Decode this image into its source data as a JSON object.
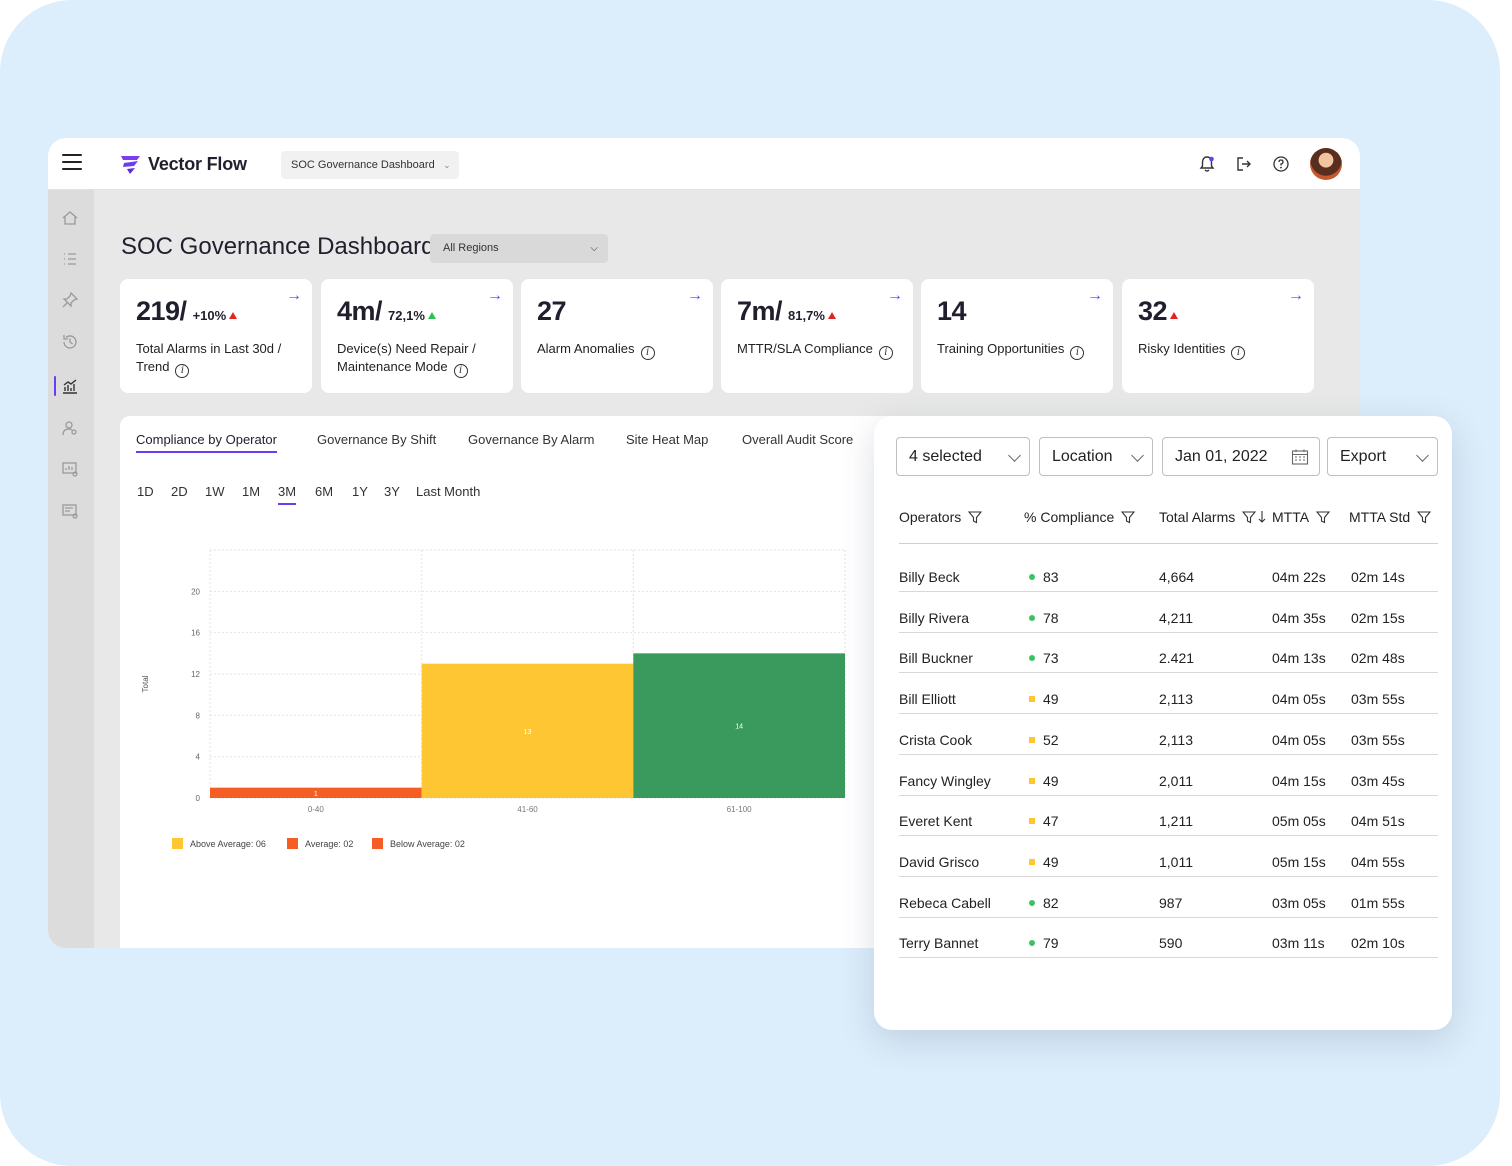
{
  "app": {
    "brand": "Vector Flow",
    "dashboard_select": "SOC Governance Dashboard",
    "accent_color": "#6b3cf0"
  },
  "header_icons": [
    "bell-icon",
    "logout-icon",
    "help-icon"
  ],
  "sidebar_icons": [
    "home-icon",
    "list-icon",
    "pin-icon",
    "history-icon",
    "analytics-icon",
    "user-search-icon",
    "report-icon",
    "billing-icon"
  ],
  "page": {
    "title": "SOC Governance Dashboard",
    "region": "All Regions"
  },
  "kpis": [
    {
      "value": "219/",
      "trend": "+10%",
      "trend_dir": "up-red",
      "label": "Total Alarms in Last 30d / Trend"
    },
    {
      "value": "4m/",
      "trend": "72,1%",
      "trend_dir": "up-green",
      "label": "Device(s) Need Repair / Maintenance Mode"
    },
    {
      "value": "27",
      "trend": "",
      "trend_dir": "",
      "label": "Alarm Anomalies"
    },
    {
      "value": "7m/",
      "trend": "81,7%",
      "trend_dir": "up-red",
      "label": "MTTR/SLA Compliance"
    },
    {
      "value": "14",
      "trend": "",
      "trend_dir": "",
      "label": "Training Opportunities"
    },
    {
      "value": "32",
      "trend": "",
      "trend_dir": "up-red",
      "label": "Risky Identities"
    }
  ],
  "tabs": [
    "Compliance by Operator",
    "Governance By Shift",
    "Governance By Alarm",
    "Site Heat Map",
    "Overall Audit Score"
  ],
  "active_tab": "Compliance by Operator",
  "ranges": [
    "1D",
    "2D",
    "1W",
    "1M",
    "3M",
    "6M",
    "1Y",
    "3Y",
    "Last Month"
  ],
  "active_range": "3M",
  "chart_data": {
    "type": "bar",
    "categories": [
      "0-40",
      "41-60",
      "61-100"
    ],
    "values": [
      1,
      13,
      14
    ],
    "colors": [
      "#f45e25",
      "#fec632",
      "#3a9a5d"
    ],
    "ylabel": "Total",
    "yticks": [
      0,
      4,
      8,
      12,
      16,
      20
    ],
    "ylim": [
      0,
      24
    ],
    "grid": true,
    "legend": [
      {
        "label": "Above Average: 06",
        "color": "#fec632"
      },
      {
        "label": "Average: 02",
        "color": "#f45e25"
      },
      {
        "label": "Below Average: 02",
        "color": "#f45e25"
      }
    ]
  },
  "filters": {
    "operators": "4 selected",
    "location": "Location",
    "date": "Jan 01, 2022",
    "export": "Export"
  },
  "table": {
    "columns": [
      "Operators",
      "% Compliance",
      "Total Alarms",
      "MTTA",
      "MTTA Std"
    ],
    "rows": [
      {
        "name": "Billy Beck",
        "compliance": "83",
        "status": "green",
        "alarms": "4,664",
        "mtta": "04m 22s",
        "std": "02m 14s"
      },
      {
        "name": "Billy Rivera",
        "compliance": "78",
        "status": "green",
        "alarms": "4,211",
        "mtta": "04m 35s",
        "std": "02m 15s"
      },
      {
        "name": "Bill Buckner",
        "compliance": "73",
        "status": "green",
        "alarms": "2.421",
        "mtta": "04m 13s",
        "std": "02m 48s"
      },
      {
        "name": "Bill Elliott",
        "compliance": "49",
        "status": "yellow",
        "alarms": "2,113",
        "mtta": "04m 05s",
        "std": "03m 55s"
      },
      {
        "name": "Crista Cook",
        "compliance": "52",
        "status": "yellow",
        "alarms": "2,113",
        "mtta": "04m 05s",
        "std": "03m 55s"
      },
      {
        "name": "Fancy Wingley",
        "compliance": "49",
        "status": "yellow",
        "alarms": "2,011",
        "mtta": "04m 15s",
        "std": "03m 45s"
      },
      {
        "name": "Everet Kent",
        "compliance": "47",
        "status": "yellow",
        "alarms": "1,211",
        "mtta": "05m 05s",
        "std": "04m 51s"
      },
      {
        "name": "David Grisco",
        "compliance": "49",
        "status": "yellow",
        "alarms": "1,011",
        "mtta": "05m 15s",
        "std": "04m 55s"
      },
      {
        "name": "Rebeca Cabell",
        "compliance": "82",
        "status": "green",
        "alarms": "987",
        "mtta": "03m 05s",
        "std": "01m 55s"
      },
      {
        "name": "Terry Bannet",
        "compliance": "79",
        "status": "green",
        "alarms": "590",
        "mtta": "03m 11s",
        "std": "02m 10s"
      }
    ]
  }
}
